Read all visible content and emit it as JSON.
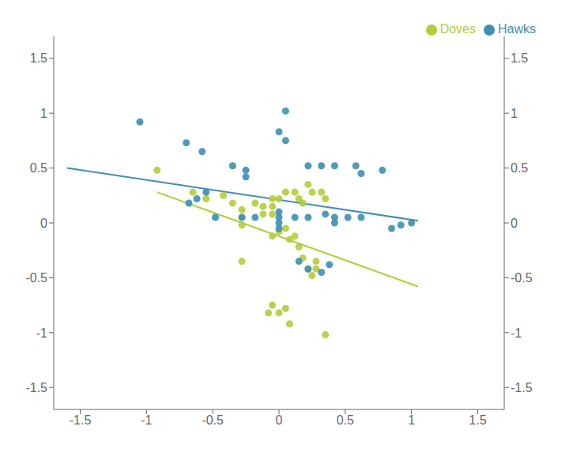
{
  "chart_data": {
    "type": "scatter",
    "xlim": [
      -1.7,
      1.7
    ],
    "ylim": [
      -1.7,
      1.7
    ],
    "xticks": [
      -1.5,
      -1,
      -0.5,
      0,
      0.5,
      1,
      1.5
    ],
    "yticks": [
      -1.5,
      -1,
      -0.5,
      0,
      0.5,
      1,
      1.5
    ],
    "y2lim": [
      -1.7,
      1.7
    ],
    "y2ticks": [
      -1.5,
      -1,
      -0.5,
      0,
      0.5,
      1,
      1.5
    ],
    "grid": false,
    "legend": "upper right",
    "series": [
      {
        "name": "Doves",
        "type": "scatter",
        "marker": "circle",
        "color": "#b5cc3a",
        "x": [
          -0.92,
          -0.65,
          -0.55,
          -0.42,
          -0.35,
          -0.28,
          -0.28,
          -0.28,
          -0.18,
          -0.12,
          -0.12,
          -0.05,
          -0.05,
          -0.05,
          0.0,
          0.05,
          0.12,
          0.15,
          0.18,
          0.22,
          0.25,
          0.32,
          0.35,
          -0.05,
          0.0,
          0.05,
          0.08,
          0.12,
          0.15,
          0.18,
          0.22,
          0.25,
          0.28,
          0.28,
          -0.28,
          -0.08,
          -0.05,
          0.0,
          0.05,
          0.08,
          0.35
        ],
        "values": [
          0.48,
          0.28,
          0.22,
          0.25,
          0.18,
          0.12,
          0.05,
          -0.02,
          0.18,
          0.15,
          0.08,
          0.22,
          0.15,
          0.08,
          0.22,
          0.28,
          0.28,
          0.22,
          0.18,
          0.35,
          0.28,
          0.28,
          0.22,
          -0.12,
          -0.08,
          -0.05,
          -0.15,
          -0.12,
          -0.22,
          -0.32,
          -0.42,
          -0.48,
          -0.42,
          -0.35,
          -0.35,
          -0.82,
          -0.75,
          -0.82,
          -0.78,
          -0.92,
          -1.02
        ]
      },
      {
        "name": "Hawks",
        "type": "scatter",
        "marker": "circle",
        "color": "#3d8fb5",
        "x": [
          -1.05,
          -0.7,
          -0.58,
          0.05,
          0.0,
          0.05,
          -0.35,
          -0.25,
          -0.25,
          0.22,
          0.32,
          0.42,
          0.58,
          0.62,
          0.78,
          -0.55,
          -0.62,
          -0.68,
          -0.48,
          -0.28,
          -0.18,
          0.0,
          0.0,
          0.0,
          0.0,
          0.12,
          0.22,
          0.35,
          0.42,
          0.42,
          0.52,
          0.62,
          0.85,
          0.92,
          1.0,
          0.15,
          0.22,
          0.32,
          0.38
        ],
        "values": [
          0.92,
          0.73,
          0.65,
          1.02,
          0.83,
          0.75,
          0.52,
          0.48,
          0.42,
          0.52,
          0.52,
          0.52,
          0.52,
          0.45,
          0.48,
          0.28,
          0.22,
          0.18,
          0.05,
          0.05,
          0.05,
          0.05,
          0.1,
          0.0,
          -0.05,
          0.05,
          0.05,
          0.08,
          0.05,
          0.0,
          0.05,
          0.05,
          -0.05,
          -0.02,
          0.0,
          -0.35,
          -0.42,
          -0.45,
          -0.38
        ]
      },
      {
        "type": "line",
        "line_style": "solid",
        "color": "#3d8fb5",
        "x": [
          -1.6,
          1.05
        ],
        "values": [
          0.5,
          0.02
        ]
      },
      {
        "type": "line",
        "line_style": "solid",
        "color": "#b5cc3a",
        "x": [
          -0.92,
          1.05
        ],
        "values": [
          0.28,
          -0.58
        ]
      }
    ]
  }
}
